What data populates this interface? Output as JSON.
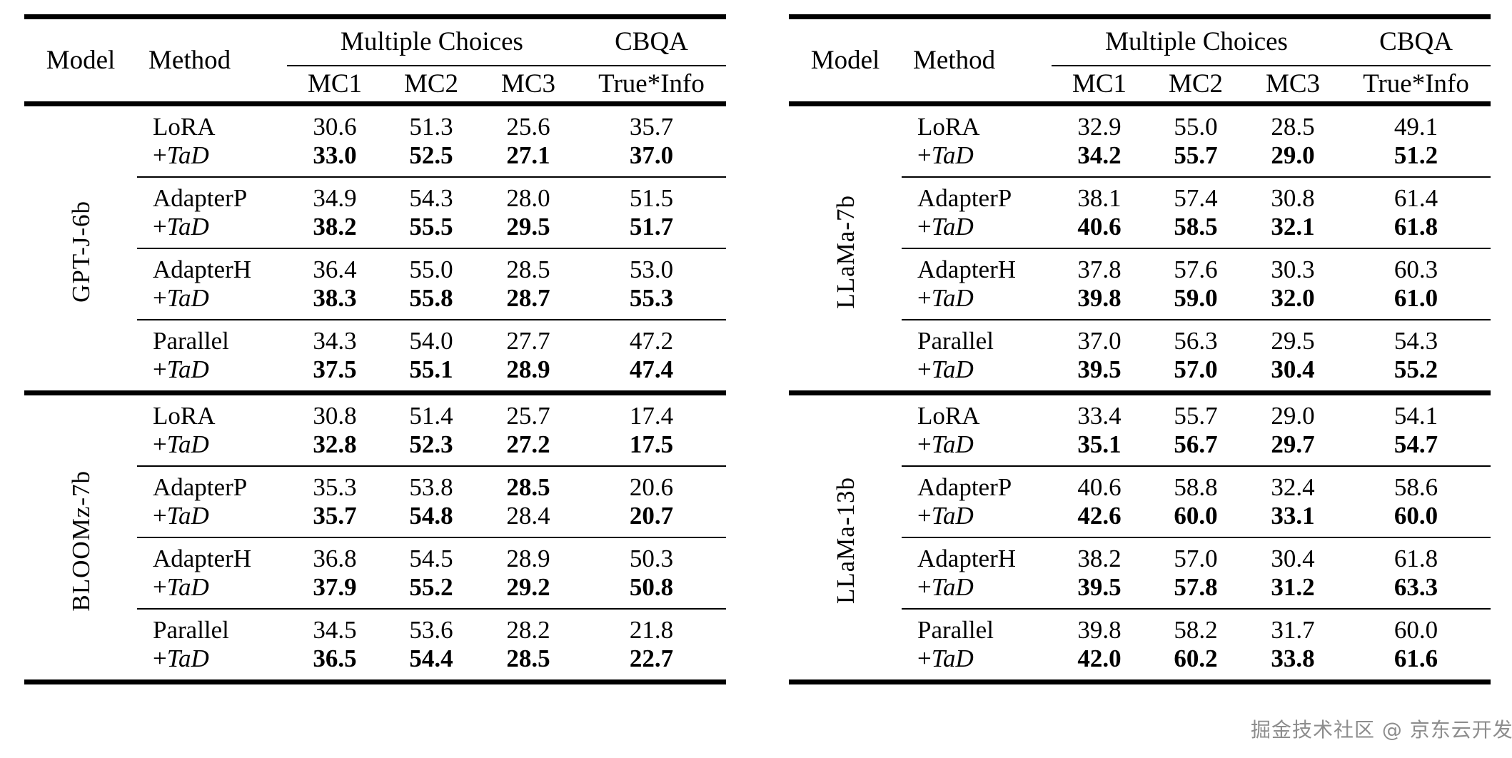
{
  "header": {
    "model": "Model",
    "method": "Method",
    "group1": "Multiple Choices",
    "group2": "CBQA",
    "subcols": [
      "MC1",
      "MC2",
      "MC3",
      "True*Info"
    ]
  },
  "tables": [
    {
      "name": "results-table-left",
      "sections": [
        {
          "model": "GPT-J-6b",
          "groups": [
            {
              "rows": [
                {
                  "method": {
                    "prefix": "",
                    "name": "LoRA",
                    "italic": false
                  },
                  "values": [
                    "30.6",
                    "51.3",
                    "25.6",
                    "35.7"
                  ],
                  "bold": [
                    false,
                    false,
                    false,
                    false
                  ]
                },
                {
                  "method": {
                    "prefix": "+",
                    "name": "TaD",
                    "italic": true
                  },
                  "values": [
                    "33.0",
                    "52.5",
                    "27.1",
                    "37.0"
                  ],
                  "bold": [
                    true,
                    true,
                    true,
                    true
                  ]
                }
              ]
            },
            {
              "rows": [
                {
                  "method": {
                    "prefix": "",
                    "name": "AdapterP",
                    "italic": false
                  },
                  "values": [
                    "34.9",
                    "54.3",
                    "28.0",
                    "51.5"
                  ],
                  "bold": [
                    false,
                    false,
                    false,
                    false
                  ]
                },
                {
                  "method": {
                    "prefix": "+",
                    "name": "TaD",
                    "italic": true
                  },
                  "values": [
                    "38.2",
                    "55.5",
                    "29.5",
                    "51.7"
                  ],
                  "bold": [
                    true,
                    true,
                    true,
                    true
                  ]
                }
              ]
            },
            {
              "rows": [
                {
                  "method": {
                    "prefix": "",
                    "name": "AdapterH",
                    "italic": false
                  },
                  "values": [
                    "36.4",
                    "55.0",
                    "28.5",
                    "53.0"
                  ],
                  "bold": [
                    false,
                    false,
                    false,
                    false
                  ]
                },
                {
                  "method": {
                    "prefix": "+",
                    "name": "TaD",
                    "italic": true
                  },
                  "values": [
                    "38.3",
                    "55.8",
                    "28.7",
                    "55.3"
                  ],
                  "bold": [
                    true,
                    true,
                    true,
                    true
                  ]
                }
              ]
            },
            {
              "rows": [
                {
                  "method": {
                    "prefix": "",
                    "name": "Parallel",
                    "italic": false
                  },
                  "values": [
                    "34.3",
                    "54.0",
                    "27.7",
                    "47.2"
                  ],
                  "bold": [
                    false,
                    false,
                    false,
                    false
                  ]
                },
                {
                  "method": {
                    "prefix": "+",
                    "name": "TaD",
                    "italic": true
                  },
                  "values": [
                    "37.5",
                    "55.1",
                    "28.9",
                    "47.4"
                  ],
                  "bold": [
                    true,
                    true,
                    true,
                    true
                  ]
                }
              ]
            }
          ]
        },
        {
          "model": "BLOOMz-7b",
          "groups": [
            {
              "rows": [
                {
                  "method": {
                    "prefix": "",
                    "name": "LoRA",
                    "italic": false
                  },
                  "values": [
                    "30.8",
                    "51.4",
                    "25.7",
                    "17.4"
                  ],
                  "bold": [
                    false,
                    false,
                    false,
                    false
                  ]
                },
                {
                  "method": {
                    "prefix": "+",
                    "name": "TaD",
                    "italic": true
                  },
                  "values": [
                    "32.8",
                    "52.3",
                    "27.2",
                    "17.5"
                  ],
                  "bold": [
                    true,
                    true,
                    true,
                    true
                  ]
                }
              ]
            },
            {
              "rows": [
                {
                  "method": {
                    "prefix": "",
                    "name": "AdapterP",
                    "italic": false
                  },
                  "values": [
                    "35.3",
                    "53.8",
                    "28.5",
                    "20.6"
                  ],
                  "bold": [
                    false,
                    false,
                    true,
                    false
                  ]
                },
                {
                  "method": {
                    "prefix": "+",
                    "name": "TaD",
                    "italic": true
                  },
                  "values": [
                    "35.7",
                    "54.8",
                    "28.4",
                    "20.7"
                  ],
                  "bold": [
                    true,
                    true,
                    false,
                    true
                  ]
                }
              ]
            },
            {
              "rows": [
                {
                  "method": {
                    "prefix": "",
                    "name": "AdapterH",
                    "italic": false
                  },
                  "values": [
                    "36.8",
                    "54.5",
                    "28.9",
                    "50.3"
                  ],
                  "bold": [
                    false,
                    false,
                    false,
                    false
                  ]
                },
                {
                  "method": {
                    "prefix": "+",
                    "name": "TaD",
                    "italic": true
                  },
                  "values": [
                    "37.9",
                    "55.2",
                    "29.2",
                    "50.8"
                  ],
                  "bold": [
                    true,
                    true,
                    true,
                    true
                  ]
                }
              ]
            },
            {
              "rows": [
                {
                  "method": {
                    "prefix": "",
                    "name": "Parallel",
                    "italic": false
                  },
                  "values": [
                    "34.5",
                    "53.6",
                    "28.2",
                    "21.8"
                  ],
                  "bold": [
                    false,
                    false,
                    false,
                    false
                  ]
                },
                {
                  "method": {
                    "prefix": "+",
                    "name": "TaD",
                    "italic": true
                  },
                  "values": [
                    "36.5",
                    "54.4",
                    "28.5",
                    "22.7"
                  ],
                  "bold": [
                    true,
                    true,
                    true,
                    true
                  ]
                }
              ]
            }
          ]
        }
      ]
    },
    {
      "name": "results-table-right",
      "sections": [
        {
          "model": "LLaMa-7b",
          "groups": [
            {
              "rows": [
                {
                  "method": {
                    "prefix": "",
                    "name": "LoRA",
                    "italic": false
                  },
                  "values": [
                    "32.9",
                    "55.0",
                    "28.5",
                    "49.1"
                  ],
                  "bold": [
                    false,
                    false,
                    false,
                    false
                  ]
                },
                {
                  "method": {
                    "prefix": "+",
                    "name": "TaD",
                    "italic": true
                  },
                  "values": [
                    "34.2",
                    "55.7",
                    "29.0",
                    "51.2"
                  ],
                  "bold": [
                    true,
                    true,
                    true,
                    true
                  ]
                }
              ]
            },
            {
              "rows": [
                {
                  "method": {
                    "prefix": "",
                    "name": "AdapterP",
                    "italic": false
                  },
                  "values": [
                    "38.1",
                    "57.4",
                    "30.8",
                    "61.4"
                  ],
                  "bold": [
                    false,
                    false,
                    false,
                    false
                  ]
                },
                {
                  "method": {
                    "prefix": "+",
                    "name": "TaD",
                    "italic": true
                  },
                  "values": [
                    "40.6",
                    "58.5",
                    "32.1",
                    "61.8"
                  ],
                  "bold": [
                    true,
                    true,
                    true,
                    true
                  ]
                }
              ]
            },
            {
              "rows": [
                {
                  "method": {
                    "prefix": "",
                    "name": "AdapterH",
                    "italic": false
                  },
                  "values": [
                    "37.8",
                    "57.6",
                    "30.3",
                    "60.3"
                  ],
                  "bold": [
                    false,
                    false,
                    false,
                    false
                  ]
                },
                {
                  "method": {
                    "prefix": "+",
                    "name": "TaD",
                    "italic": true
                  },
                  "values": [
                    "39.8",
                    "59.0",
                    "32.0",
                    "61.0"
                  ],
                  "bold": [
                    true,
                    true,
                    true,
                    true
                  ]
                }
              ]
            },
            {
              "rows": [
                {
                  "method": {
                    "prefix": "",
                    "name": "Parallel",
                    "italic": false
                  },
                  "values": [
                    "37.0",
                    "56.3",
                    "29.5",
                    "54.3"
                  ],
                  "bold": [
                    false,
                    false,
                    false,
                    false
                  ]
                },
                {
                  "method": {
                    "prefix": "+",
                    "name": "TaD",
                    "italic": true
                  },
                  "values": [
                    "39.5",
                    "57.0",
                    "30.4",
                    "55.2"
                  ],
                  "bold": [
                    true,
                    true,
                    true,
                    true
                  ]
                }
              ]
            }
          ]
        },
        {
          "model": "LLaMa-13b",
          "groups": [
            {
              "rows": [
                {
                  "method": {
                    "prefix": "",
                    "name": "LoRA",
                    "italic": false
                  },
                  "values": [
                    "33.4",
                    "55.7",
                    "29.0",
                    "54.1"
                  ],
                  "bold": [
                    false,
                    false,
                    false,
                    false
                  ]
                },
                {
                  "method": {
                    "prefix": "+",
                    "name": "TaD",
                    "italic": true
                  },
                  "values": [
                    "35.1",
                    "56.7",
                    "29.7",
                    "54.7"
                  ],
                  "bold": [
                    true,
                    true,
                    true,
                    true
                  ]
                }
              ]
            },
            {
              "rows": [
                {
                  "method": {
                    "prefix": "",
                    "name": "AdapterP",
                    "italic": false
                  },
                  "values": [
                    "40.6",
                    "58.8",
                    "32.4",
                    "58.6"
                  ],
                  "bold": [
                    false,
                    false,
                    false,
                    false
                  ]
                },
                {
                  "method": {
                    "prefix": "+",
                    "name": "TaD",
                    "italic": true
                  },
                  "values": [
                    "42.6",
                    "60.0",
                    "33.1",
                    "60.0"
                  ],
                  "bold": [
                    true,
                    true,
                    true,
                    true
                  ]
                }
              ]
            },
            {
              "rows": [
                {
                  "method": {
                    "prefix": "",
                    "name": "AdapterH",
                    "italic": false
                  },
                  "values": [
                    "38.2",
                    "57.0",
                    "30.4",
                    "61.8"
                  ],
                  "bold": [
                    false,
                    false,
                    false,
                    false
                  ]
                },
                {
                  "method": {
                    "prefix": "+",
                    "name": "TaD",
                    "italic": true
                  },
                  "values": [
                    "39.5",
                    "57.8",
                    "31.2",
                    "63.3"
                  ],
                  "bold": [
                    true,
                    true,
                    true,
                    true
                  ]
                }
              ]
            },
            {
              "rows": [
                {
                  "method": {
                    "prefix": "",
                    "name": "Parallel",
                    "italic": false
                  },
                  "values": [
                    "39.8",
                    "58.2",
                    "31.7",
                    "60.0"
                  ],
                  "bold": [
                    false,
                    false,
                    false,
                    false
                  ]
                },
                {
                  "method": {
                    "prefix": "+",
                    "name": "TaD",
                    "italic": true
                  },
                  "values": [
                    "42.0",
                    "60.2",
                    "33.8",
                    "61.6"
                  ],
                  "bold": [
                    true,
                    true,
                    true,
                    true
                  ]
                }
              ]
            }
          ]
        }
      ]
    }
  ],
  "watermark": {
    "text": "掘金技术社区 @ 京东云开发者",
    "color": "#8d8d8d"
  },
  "colors": {
    "text": "#000000",
    "background": "#ffffff",
    "rule": "#000000"
  }
}
